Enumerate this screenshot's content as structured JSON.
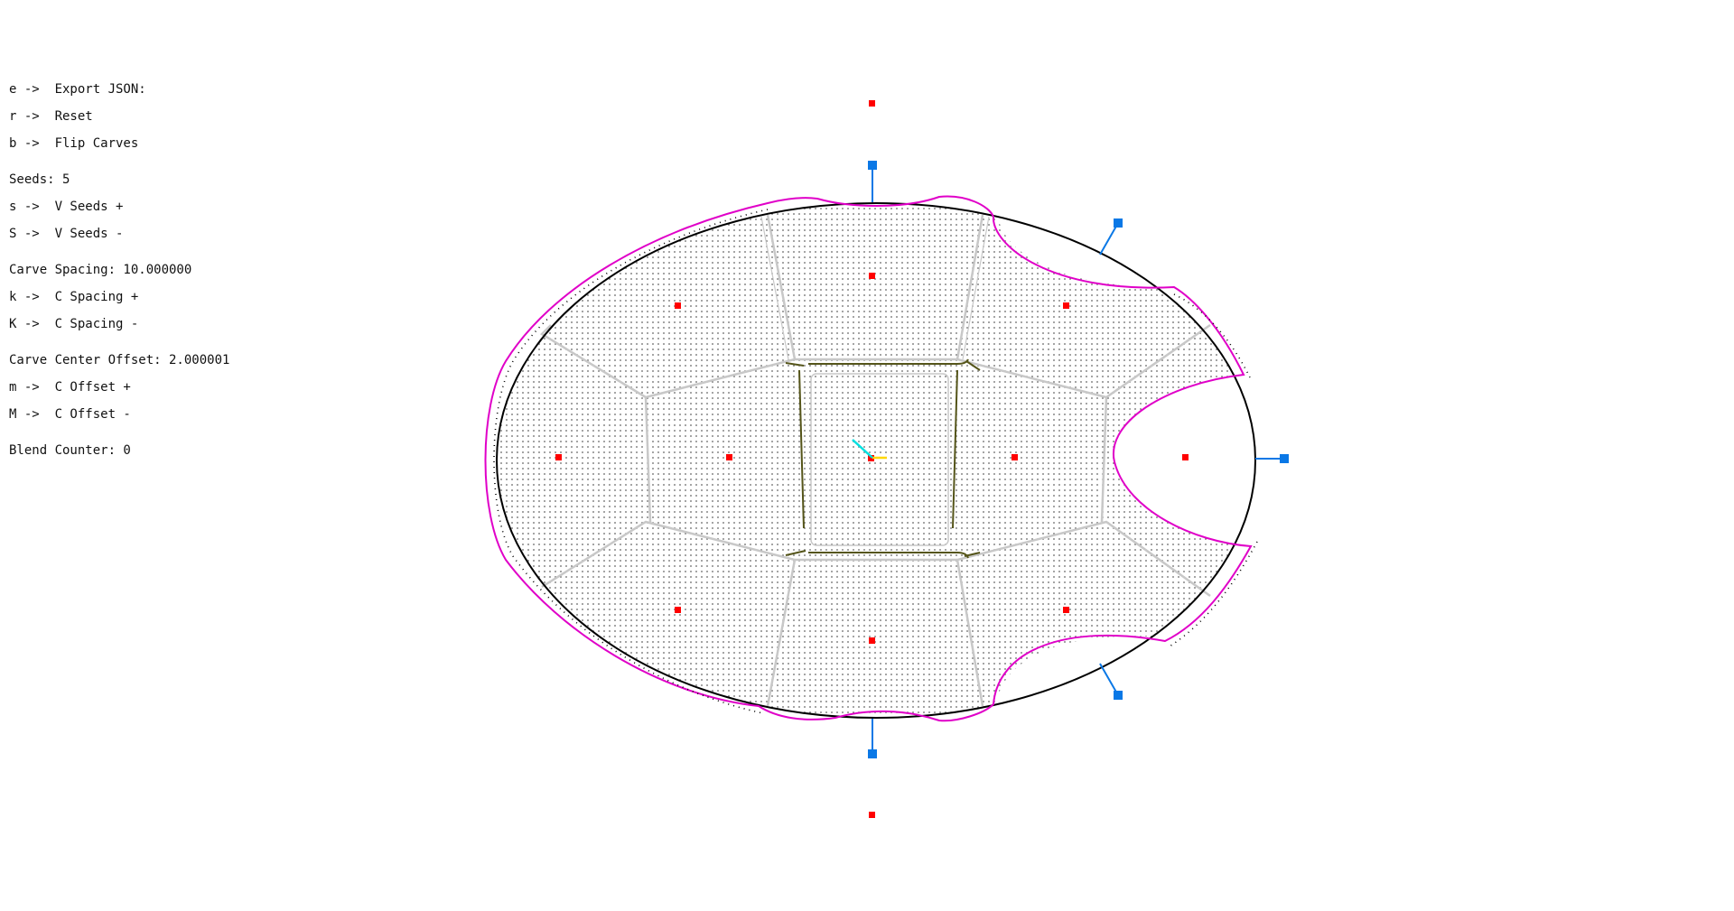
{
  "hud": {
    "export": "e ->  Export JSON:",
    "reset": "r ->  Reset",
    "flip": "b ->  Flip Carves",
    "seeds": "Seeds: 5",
    "seeds_plus": "s ->  V Seeds +",
    "seeds_minus": "S ->  V Seeds -",
    "carve_spacing": "Carve Spacing: 10.000000",
    "spacing_plus": "k ->  C Spacing +",
    "spacing_minus": "K ->  C Spacing -",
    "carve_offset": "Carve Center Offset: 2.000001",
    "offset_plus": "m ->  C Offset +",
    "offset_minus": "M ->  C Offset -",
    "blend_counter": "Blend Counter: 0"
  },
  "colors": {
    "outline": "#000000",
    "carve": "#e000c8",
    "seed": "#ff0000",
    "handle": "#0a78e6",
    "cell": "#c8c8c8",
    "inner_cell": "#55551a",
    "dots": "#5a5a5a",
    "axis_x": "#ffd700",
    "axis_y": "#00e0e0"
  }
}
